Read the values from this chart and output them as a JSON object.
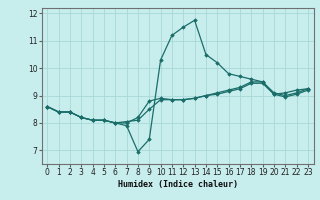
{
  "title": "",
  "xlabel": "Humidex (Indice chaleur)",
  "background_color": "#c8eded",
  "grid_color": "#a8d8d8",
  "line_color": "#1a6e6a",
  "xlim": [
    -0.5,
    23.5
  ],
  "ylim": [
    6.5,
    12.2
  ],
  "yticks": [
    7,
    8,
    9,
    10,
    11,
    12
  ],
  "xticks": [
    0,
    1,
    2,
    3,
    4,
    5,
    6,
    7,
    8,
    9,
    10,
    11,
    12,
    13,
    14,
    15,
    16,
    17,
    18,
    19,
    20,
    21,
    22,
    23
  ],
  "series": [
    [
      8.6,
      8.4,
      8.4,
      8.2,
      8.1,
      8.1,
      8.0,
      7.9,
      6.95,
      7.4,
      10.3,
      11.2,
      11.5,
      11.75,
      10.5,
      10.2,
      9.8,
      9.7,
      9.6,
      9.5,
      9.05,
      9.1,
      9.2,
      9.25
    ],
    [
      8.6,
      8.4,
      8.4,
      8.2,
      8.1,
      8.1,
      8.0,
      8.0,
      8.2,
      8.8,
      8.9,
      8.85,
      8.85,
      8.9,
      9.0,
      9.1,
      9.2,
      9.3,
      9.5,
      9.5,
      9.1,
      9.0,
      9.1,
      9.25
    ],
    [
      8.6,
      8.4,
      8.4,
      8.2,
      8.1,
      8.1,
      8.0,
      8.05,
      8.1,
      8.5,
      8.85,
      8.85,
      8.85,
      8.9,
      9.0,
      9.05,
      9.15,
      9.25,
      9.45,
      9.45,
      9.05,
      8.95,
      9.05,
      9.2
    ]
  ]
}
